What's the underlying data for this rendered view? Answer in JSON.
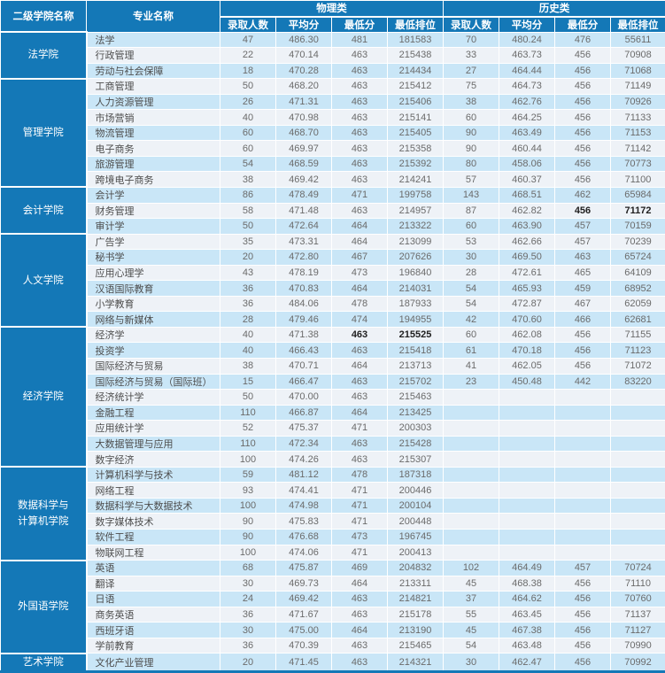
{
  "header": {
    "college_col": "二级学院名称",
    "major_col": "专业名称",
    "groups": [
      {
        "label": "物理类",
        "subcols": [
          "录取人数",
          "平均分",
          "最低分",
          "最低排位"
        ]
      },
      {
        "label": "历史类",
        "subcols": [
          "录取人数",
          "平均分",
          "最低分",
          "最低排位"
        ]
      }
    ]
  },
  "colors": {
    "header_bg": "#1478b7",
    "row_blue": "#c9e6f7",
    "row_pale": "#eef2f7",
    "header_text": "#ffffff",
    "number_text": "#6b6b6b"
  },
  "colleges": [
    {
      "name": "法学院",
      "majors": [
        {
          "name": "法学",
          "cells": [
            "47",
            "486.30",
            "481",
            "181583",
            "70",
            "480.24",
            "476",
            "55611"
          ]
        },
        {
          "name": "行政管理",
          "cells": [
            "22",
            "470.14",
            "463",
            "215438",
            "33",
            "463.73",
            "456",
            "70908"
          ]
        },
        {
          "name": "劳动与社会保障",
          "cells": [
            "18",
            "470.28",
            "463",
            "214434",
            "27",
            "464.44",
            "456",
            "71068"
          ]
        }
      ]
    },
    {
      "name": "管理学院",
      "majors": [
        {
          "name": "工商管理",
          "cells": [
            "50",
            "468.20",
            "463",
            "215412",
            "75",
            "464.73",
            "456",
            "71149"
          ]
        },
        {
          "name": "人力资源管理",
          "cells": [
            "26",
            "471.31",
            "463",
            "215406",
            "38",
            "462.76",
            "456",
            "70926"
          ]
        },
        {
          "name": "市场营销",
          "cells": [
            "40",
            "470.98",
            "463",
            "215141",
            "60",
            "464.25",
            "456",
            "71133"
          ]
        },
        {
          "name": "物流管理",
          "cells": [
            "60",
            "468.70",
            "463",
            "215405",
            "90",
            "463.49",
            "456",
            "71153"
          ]
        },
        {
          "name": "电子商务",
          "cells": [
            "60",
            "469.97",
            "463",
            "215358",
            "90",
            "460.44",
            "456",
            "71142"
          ]
        },
        {
          "name": "旅游管理",
          "cells": [
            "54",
            "468.59",
            "463",
            "215392",
            "80",
            "458.06",
            "456",
            "70773"
          ]
        },
        {
          "name": "跨境电子商务",
          "cells": [
            "38",
            "469.42",
            "463",
            "214241",
            "57",
            "460.37",
            "456",
            "71100"
          ]
        }
      ]
    },
    {
      "name": "会计学院",
      "majors": [
        {
          "name": "会计学",
          "cells": [
            "86",
            "478.49",
            "471",
            "199758",
            "143",
            "468.51",
            "462",
            "65984"
          ]
        },
        {
          "name": "财务管理",
          "cells": [
            "58",
            "471.48",
            "463",
            "214957",
            "87",
            "462.82",
            "456",
            "71172"
          ],
          "bold": [
            6,
            7
          ]
        },
        {
          "name": "审计学",
          "cells": [
            "50",
            "472.64",
            "464",
            "213322",
            "60",
            "463.90",
            "457",
            "70159"
          ]
        }
      ]
    },
    {
      "name": "人文学院",
      "majors": [
        {
          "name": "广告学",
          "cells": [
            "35",
            "473.31",
            "464",
            "213099",
            "53",
            "462.66",
            "457",
            "70239"
          ]
        },
        {
          "name": "秘书学",
          "cells": [
            "20",
            "472.80",
            "467",
            "207626",
            "30",
            "469.50",
            "463",
            "65724"
          ]
        },
        {
          "name": "应用心理学",
          "cells": [
            "43",
            "478.19",
            "473",
            "196840",
            "28",
            "472.61",
            "465",
            "64109"
          ]
        },
        {
          "name": "汉语国际教育",
          "cells": [
            "36",
            "470.83",
            "464",
            "214031",
            "54",
            "465.93",
            "459",
            "68952"
          ]
        },
        {
          "name": "小学教育",
          "cells": [
            "36",
            "484.06",
            "478",
            "187933",
            "54",
            "472.87",
            "467",
            "62059"
          ]
        },
        {
          "name": "网络与新媒体",
          "cells": [
            "28",
            "479.46",
            "474",
            "194955",
            "42",
            "470.60",
            "466",
            "62681"
          ]
        }
      ]
    },
    {
      "name": "经济学院",
      "majors": [
        {
          "name": "经济学",
          "cells": [
            "40",
            "471.38",
            "463",
            "215525",
            "60",
            "462.08",
            "456",
            "71155"
          ],
          "bold": [
            2,
            3
          ]
        },
        {
          "name": "投资学",
          "cells": [
            "40",
            "466.43",
            "463",
            "215418",
            "61",
            "470.18",
            "456",
            "71123"
          ]
        },
        {
          "name": "国际经济与贸易",
          "cells": [
            "38",
            "470.71",
            "464",
            "213713",
            "41",
            "462.05",
            "456",
            "71072"
          ]
        },
        {
          "name": "国际经济与贸易（国际班）",
          "cells": [
            "15",
            "466.47",
            "463",
            "215702",
            "23",
            "450.48",
            "442",
            "83220"
          ]
        },
        {
          "name": "经济统计学",
          "cells": [
            "50",
            "470.00",
            "463",
            "215463",
            "",
            "",
            "",
            ""
          ]
        },
        {
          "name": "金融工程",
          "cells": [
            "110",
            "466.87",
            "464",
            "213425",
            "",
            "",
            "",
            ""
          ]
        },
        {
          "name": "应用统计学",
          "cells": [
            "52",
            "475.37",
            "471",
            "200303",
            "",
            "",
            "",
            ""
          ]
        },
        {
          "name": "大数据管理与应用",
          "cells": [
            "110",
            "472.34",
            "463",
            "215428",
            "",
            "",
            "",
            ""
          ]
        },
        {
          "name": "数字经济",
          "cells": [
            "100",
            "474.26",
            "463",
            "215307",
            "",
            "",
            "",
            ""
          ]
        }
      ]
    },
    {
      "name": "数据科学与\n计算机学院",
      "majors": [
        {
          "name": "计算机科学与技术",
          "cells": [
            "59",
            "481.12",
            "478",
            "187318",
            "",
            "",
            "",
            ""
          ]
        },
        {
          "name": "网络工程",
          "cells": [
            "93",
            "474.41",
            "471",
            "200446",
            "",
            "",
            "",
            ""
          ]
        },
        {
          "name": "数据科学与大数据技术",
          "cells": [
            "100",
            "474.98",
            "471",
            "200104",
            "",
            "",
            "",
            ""
          ]
        },
        {
          "name": "数字媒体技术",
          "cells": [
            "90",
            "475.83",
            "471",
            "200448",
            "",
            "",
            "",
            ""
          ]
        },
        {
          "name": "软件工程",
          "cells": [
            "90",
            "476.68",
            "473",
            "196745",
            "",
            "",
            "",
            ""
          ]
        },
        {
          "name": "物联网工程",
          "cells": [
            "100",
            "474.06",
            "471",
            "200413",
            "",
            "",
            "",
            ""
          ]
        }
      ]
    },
    {
      "name": "外国语学院",
      "majors": [
        {
          "name": "英语",
          "cells": [
            "68",
            "475.87",
            "469",
            "204832",
            "102",
            "464.49",
            "457",
            "70724"
          ]
        },
        {
          "name": "翻译",
          "cells": [
            "30",
            "469.73",
            "464",
            "213311",
            "45",
            "468.38",
            "456",
            "71110"
          ]
        },
        {
          "name": "日语",
          "cells": [
            "24",
            "469.42",
            "463",
            "214821",
            "37",
            "464.62",
            "456",
            "70760"
          ]
        },
        {
          "name": "商务英语",
          "cells": [
            "36",
            "471.67",
            "463",
            "215178",
            "55",
            "463.45",
            "456",
            "71137"
          ]
        },
        {
          "name": "西班牙语",
          "cells": [
            "30",
            "475.00",
            "464",
            "213190",
            "45",
            "467.38",
            "456",
            "71127"
          ]
        },
        {
          "name": "学前教育",
          "cells": [
            "36",
            "470.39",
            "463",
            "215465",
            "54",
            "463.48",
            "456",
            "70990"
          ]
        }
      ]
    },
    {
      "name": "艺术学院",
      "majors": [
        {
          "name": "文化产业管理",
          "cells": [
            "20",
            "471.45",
            "463",
            "214321",
            "30",
            "462.47",
            "456",
            "70992"
          ]
        }
      ]
    }
  ]
}
